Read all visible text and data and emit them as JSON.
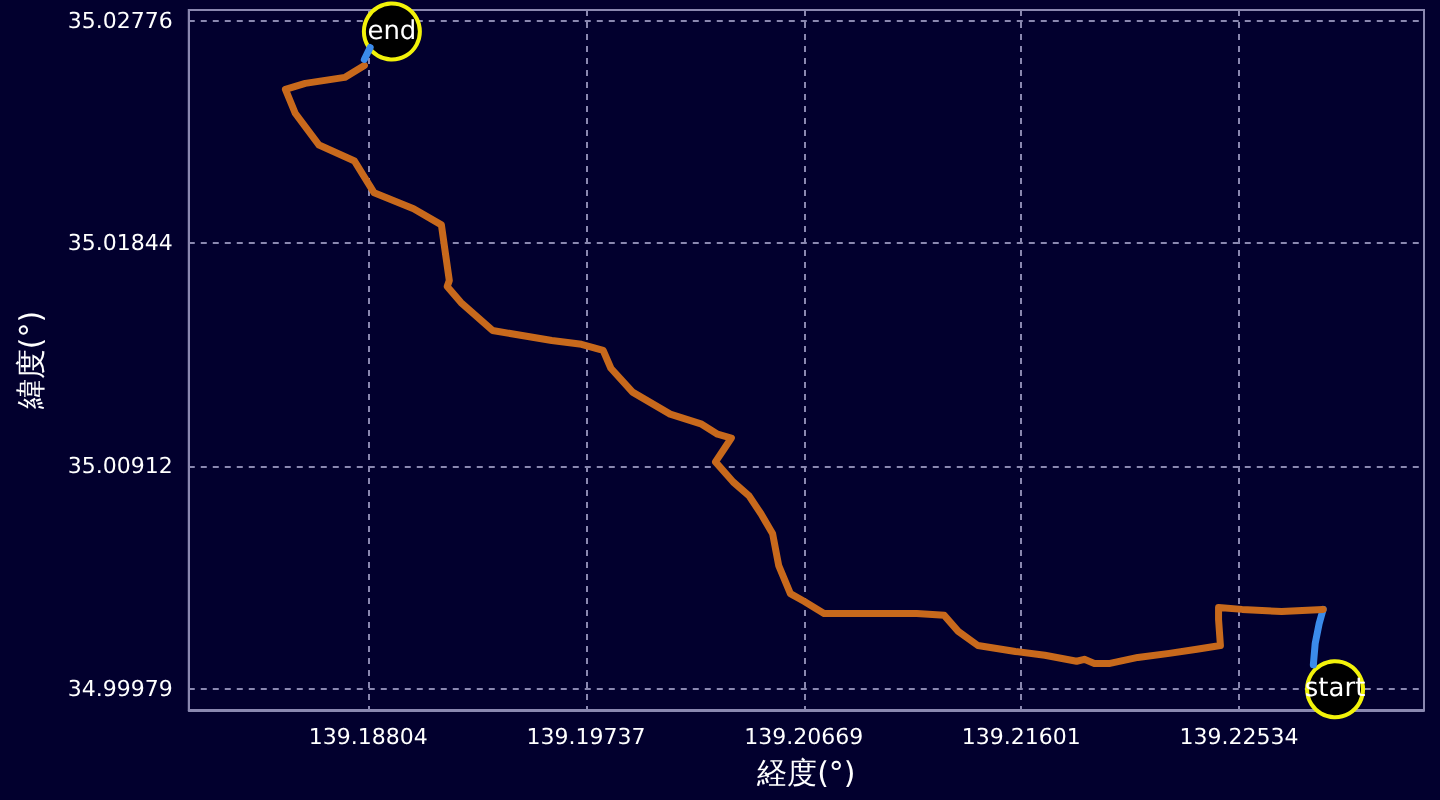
{
  "chart_data": {
    "type": "line",
    "xlabel": "経度(°)",
    "ylabel": "緯度(°)",
    "xlim": [
      139.18035,
      139.23326
    ],
    "ylim": [
      34.99891,
      35.0282
    ],
    "xticks": [
      139.18804,
      139.19737,
      139.20669,
      139.21601,
      139.22534
    ],
    "yticks": [
      34.99979,
      35.00912,
      35.01844,
      35.02776
    ],
    "grid": true,
    "marker": "none",
    "line_style": "solid",
    "annotations": [
      {
        "text": "start",
        "x": 139.22945,
        "y": 34.99978
      },
      {
        "text": "end",
        "x": 139.18905,
        "y": 35.0273
      }
    ],
    "series": [
      {
        "color": "#3b8beb",
        "x": [
          139.22852,
          139.2286,
          139.22877,
          139.22894
        ],
        "values": [
          35.0008,
          35.0017,
          35.00253,
          35.00312
        ]
      },
      {
        "color": "#c8691c",
        "x": [
          139.22894,
          139.22716,
          139.22547,
          139.22446,
          139.22446,
          139.22454,
          139.22353,
          139.22235,
          139.221,
          139.21981,
          139.21914,
          139.21871,
          139.21838,
          139.21702,
          139.21576,
          139.21415,
          139.21331,
          139.21271,
          139.21153,
          139.21026,
          139.2084,
          139.20756,
          139.20672,
          139.20612,
          139.20562,
          139.20536,
          139.20486,
          139.20435,
          139.20367,
          139.20291,
          139.20325,
          139.20359,
          139.203,
          139.20232,
          139.20097,
          139.19936,
          139.19843,
          139.1981,
          139.19717,
          139.1959,
          139.19336,
          139.19201,
          139.19142,
          139.19151,
          139.19117,
          139.18998,
          139.18829,
          139.18745,
          139.18593,
          139.18491,
          139.18449,
          139.18534,
          139.18703,
          139.18787
        ],
        "values": [
          35.00312,
          35.00303,
          35.00312,
          35.0032,
          35.0027,
          35.00161,
          35.00145,
          35.00128,
          35.00111,
          35.00086,
          35.00086,
          35.00103,
          35.00095,
          35.0012,
          35.00136,
          35.00161,
          35.0022,
          35.00287,
          35.00295,
          35.00295,
          35.00295,
          35.00295,
          35.00345,
          35.00378,
          35.00495,
          35.00628,
          35.00712,
          35.00787,
          35.00845,
          35.00929,
          35.00979,
          35.01029,
          35.01045,
          35.01087,
          35.01129,
          35.01221,
          35.01321,
          35.01396,
          35.01421,
          35.01437,
          35.01479,
          35.01596,
          35.01663,
          35.01688,
          35.01921,
          35.01988,
          35.02055,
          35.02188,
          35.02255,
          35.02388,
          35.02488,
          35.02513,
          35.02538,
          35.02588
        ]
      },
      {
        "color": "#3b8beb",
        "x": [
          139.18787,
          139.18812
        ],
        "values": [
          35.02613,
          35.02663
        ]
      }
    ]
  }
}
